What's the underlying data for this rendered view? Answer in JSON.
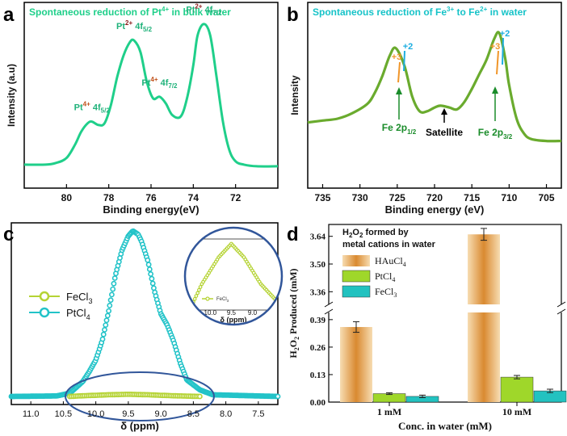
{
  "panels": {
    "a": {
      "letter": "a",
      "title_parts": [
        "Spontaneous reduction of Pt",
        "4+",
        " in bulk water"
      ],
      "xlabel": "Binding energy(eV)",
      "ylabel": "Intensity (a.u)",
      "xticks": [
        80,
        78,
        76,
        74,
        72
      ],
      "peaks": [
        {
          "ion": "Pt",
          "charge": "4+",
          "orbital": "4f",
          "sub": "5/2",
          "x": 78.8
        },
        {
          "ion": "Pt",
          "charge": "2+",
          "orbital": "4f",
          "sub": "5/2",
          "x": 76.8
        },
        {
          "ion": "Pt",
          "charge": "4+",
          "orbital": "4f",
          "sub": "7/2",
          "x": 75.6
        },
        {
          "ion": "Pt",
          "charge": "2+",
          "orbital": "4f",
          "sub": "7/2",
          "x": 73.5
        }
      ]
    },
    "b": {
      "letter": "b",
      "title_parts": [
        "Spontaneous reduction of Fe",
        "3+",
        " to Fe",
        "2+",
        " in water"
      ],
      "xlabel": "Binding energy (eV)",
      "ylabel": "Intensity",
      "xticks": [
        735,
        730,
        725,
        720,
        715,
        710,
        705
      ],
      "ox_labels": {
        "plus3": "+3",
        "plus2": "+2"
      },
      "annotations": {
        "fe2p12": {
          "main": "Fe 2p",
          "sub": "1/2",
          "x": 725.2
        },
        "satellite": {
          "main": "Satellite",
          "x": 719.2
        },
        "fe2p32": {
          "main": "Fe 2p",
          "sub": "3/2",
          "x": 711.3
        }
      }
    },
    "c": {
      "letter": "c",
      "xlabel": "δ (ppm)",
      "xticks": [
        "11.0",
        "10.5",
        "10.0",
        "9.5",
        "9.0",
        "8.5",
        "8.0",
        "7.5"
      ],
      "legend": [
        {
          "label": "FeCl",
          "sub": "3",
          "color": "#b5d334"
        },
        {
          "label": "PtCl",
          "sub": "4",
          "color": "#22c3c8"
        }
      ],
      "inset": {
        "xticks": [
          "0.5",
          "10.0",
          "9.5",
          "9.0",
          "8.5"
        ],
        "xlabel": "δ (ppm)",
        "legend": {
          "label": "FeCl",
          "sub": "3"
        }
      }
    },
    "d": {
      "letter": "d",
      "title_line1_parts": [
        "H",
        "2",
        "O",
        "2",
        " formed by"
      ],
      "title_line2": "metal cations in water",
      "ylabel_parts": [
        "H",
        "2",
        "O",
        "2",
        " Produced (mM)"
      ],
      "xlabel": "Conc. in water (mM)",
      "upper_ticks": [
        "3.64",
        "3.50",
        "3.36"
      ],
      "lower_ticks": [
        "0.39",
        "0.26",
        "0.13",
        "0.00"
      ],
      "legend": [
        {
          "label": "HAuCl",
          "sub": "4"
        },
        {
          "label": "PtCl",
          "sub": "4"
        },
        {
          "label": "FeCl",
          "sub": "3"
        }
      ]
    }
  },
  "chart_data": [
    {
      "type": "line",
      "title": "Spontaneous reduction of Pt4+ in bulk water",
      "xlabel": "Binding energy(eV)",
      "ylabel": "Intensity (a.u)",
      "xlim": [
        82,
        70
      ],
      "series": [
        {
          "name": "Pt 4f XPS",
          "color": "#1fcf8a",
          "x": [
            82.0,
            81.0,
            80.5,
            80.0,
            79.6,
            79.3,
            79.0,
            78.8,
            78.5,
            78.2,
            77.9,
            77.6,
            77.3,
            77.0,
            76.8,
            76.5,
            76.2,
            75.9,
            75.6,
            75.3,
            75.0,
            74.6,
            74.3,
            74.0,
            73.8,
            73.5,
            73.2,
            72.9,
            72.6,
            72.3,
            72.0,
            71.6,
            71.0,
            70.0
          ],
          "y": [
            0.02,
            0.02,
            0.03,
            0.06,
            0.14,
            0.22,
            0.27,
            0.28,
            0.26,
            0.27,
            0.38,
            0.55,
            0.68,
            0.76,
            0.77,
            0.7,
            0.52,
            0.42,
            0.43,
            0.39,
            0.32,
            0.31,
            0.42,
            0.62,
            0.8,
            0.87,
            0.8,
            0.55,
            0.28,
            0.11,
            0.04,
            0.02,
            0.01,
            0.01
          ]
        }
      ]
    },
    {
      "type": "line",
      "title": "Spontaneous reduction of Fe3+ to Fe2+ in water",
      "xlabel": "Binding energy (eV)",
      "ylabel": "Intensity",
      "xlim": [
        737,
        703
      ],
      "series": [
        {
          "name": "Fe 2p XPS",
          "color": "#6aab2e",
          "x": [
            737,
            735,
            733,
            731,
            729,
            728,
            727,
            726,
            725.2,
            724,
            723,
            722,
            721,
            720,
            719.2,
            718,
            717,
            716,
            715,
            714,
            713,
            712,
            711.3,
            710.5,
            710,
            709,
            708,
            707,
            705,
            703
          ],
          "y": [
            0.38,
            0.39,
            0.4,
            0.43,
            0.48,
            0.54,
            0.63,
            0.74,
            0.78,
            0.68,
            0.52,
            0.44,
            0.44,
            0.46,
            0.47,
            0.46,
            0.45,
            0.49,
            0.56,
            0.64,
            0.72,
            0.83,
            0.86,
            0.72,
            0.58,
            0.4,
            0.32,
            0.29,
            0.28,
            0.28
          ]
        }
      ]
    },
    {
      "type": "scatter",
      "title": "",
      "xlabel": "δ (ppm)",
      "xlim": [
        11.3,
        7.2
      ],
      "series": [
        {
          "name": "FeCl3",
          "color": "#b5d334",
          "x": [
            10.4,
            10.2,
            10.0,
            9.8,
            9.6,
            9.5,
            9.4,
            9.2,
            9.0,
            8.8,
            8.6,
            8.4
          ],
          "y": [
            0.0,
            0.004,
            0.007,
            0.01,
            0.012,
            0.013,
            0.012,
            0.01,
            0.007,
            0.004,
            0.002,
            0.0
          ]
        },
        {
          "name": "PtCl4",
          "color": "#22c3c8",
          "x": [
            11.3,
            10.6,
            10.4,
            10.2,
            10.1,
            10.0,
            9.9,
            9.8,
            9.7,
            9.6,
            9.5,
            9.43,
            9.35,
            9.3,
            9.2,
            9.1,
            9.0,
            8.9,
            8.8,
            8.7,
            8.6,
            8.4,
            8.2,
            7.2
          ],
          "y": [
            0.0,
            0.003,
            0.02,
            0.09,
            0.15,
            0.22,
            0.34,
            0.52,
            0.73,
            0.88,
            0.97,
            1.0,
            0.98,
            0.94,
            0.82,
            0.64,
            0.5,
            0.43,
            0.33,
            0.2,
            0.1,
            0.04,
            0.01,
            0.0
          ]
        }
      ]
    },
    {
      "type": "bar",
      "title": "H2O2 formed by metal cations in water",
      "xlabel": "Conc. in water (mM)",
      "ylabel": "H2O2 Produced (mM)",
      "categories": [
        "1 mM",
        "10 mM"
      ],
      "broken_axis": {
        "lower": [
          0,
          0.42
        ],
        "upper": [
          3.3,
          3.7
        ]
      },
      "series": [
        {
          "name": "HAuCl4",
          "values": [
            0.355,
            3.65
          ],
          "errors": [
            0.025,
            0.03
          ],
          "color": "#e3a250"
        },
        {
          "name": "PtCl4",
          "values": [
            0.04,
            0.118
          ],
          "errors": [
            0.004,
            0.008
          ],
          "color": "#9fd72a"
        },
        {
          "name": "FeCl3",
          "values": [
            0.027,
            0.053
          ],
          "errors": [
            0.006,
            0.008
          ],
          "color": "#22c2c0"
        }
      ]
    }
  ]
}
